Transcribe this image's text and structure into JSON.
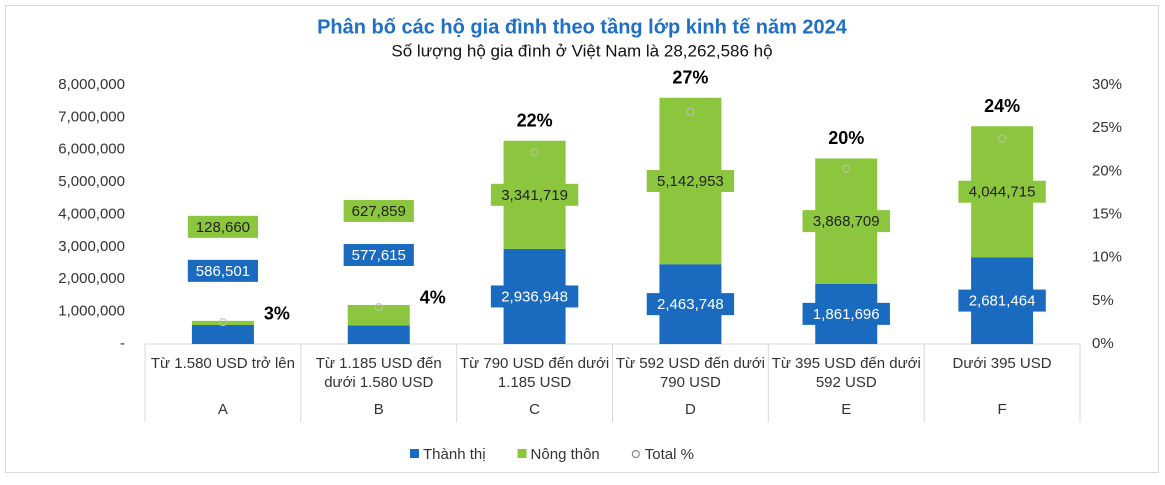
{
  "chart_data": {
    "type": "bar",
    "stacked": true,
    "title": "Phân bố các hộ gia đình theo tầng lớp kinh tế năm 2024",
    "subtitle": "Số lượng hộ gia đình ở Việt Nam là 28,262,586 hộ",
    "categories": [
      "Từ 1.580 USD trở lên",
      "Từ 1.185 USD đến dưới 1.580 USD",
      "Từ 790 USD đến dưới 1.185 USD",
      "Từ 592 USD đến dưới 790 USD",
      "Từ 395 USD đến dưới 592 USD",
      "Dưới 395 USD"
    ],
    "category_groups": [
      "A",
      "B",
      "C",
      "D",
      "E",
      "F"
    ],
    "series": [
      {
        "name": "Thành thị",
        "color": "#1a6bbf",
        "values": [
          586501,
          577615,
          2936948,
          2463748,
          1861696,
          2681464
        ],
        "value_labels": [
          "586,501",
          "577,615",
          "2,936,948",
          "2,463,748",
          "1,861,696",
          "2,681,464"
        ]
      },
      {
        "name": "Nông thôn",
        "color": "#8cc63f",
        "values": [
          128660,
          627859,
          3341719,
          5142953,
          3868709,
          4044715
        ],
        "value_labels": [
          "128,660",
          "627,859",
          "3,341,719",
          "5,142,953",
          "3,868,709",
          "4,044,715"
        ]
      },
      {
        "name": "Total %",
        "type": "scatter",
        "axis": "y2",
        "color": "#bfbfbf",
        "values": [
          2.53,
          4.27,
          22.2,
          26.9,
          20.3,
          23.8
        ],
        "value_labels": [
          "3%",
          "4%",
          "22%",
          "27%",
          "20%",
          "24%"
        ]
      }
    ],
    "ylim": [
      0,
      8000000
    ],
    "yticks": [
      {
        "value": 0,
        "label": "-"
      },
      {
        "value": 1000000,
        "label": "1,000,000"
      },
      {
        "value": 2000000,
        "label": "2,000,000"
      },
      {
        "value": 3000000,
        "label": "3,000,000"
      },
      {
        "value": 4000000,
        "label": "4,000,000"
      },
      {
        "value": 5000000,
        "label": "5,000,000"
      },
      {
        "value": 6000000,
        "label": "6,000,000"
      },
      {
        "value": 7000000,
        "label": "7,000,000"
      },
      {
        "value": 8000000,
        "label": "8,000,000"
      }
    ],
    "y2lim": [
      0,
      30
    ],
    "y2ticks": [
      {
        "value": 0,
        "label": "0%"
      },
      {
        "value": 5,
        "label": "5%"
      },
      {
        "value": 10,
        "label": "10%"
      },
      {
        "value": 15,
        "label": "15%"
      },
      {
        "value": 20,
        "label": "20%"
      },
      {
        "value": 25,
        "label": "25%"
      },
      {
        "value": 30,
        "label": "30%"
      }
    ],
    "grid": false
  }
}
